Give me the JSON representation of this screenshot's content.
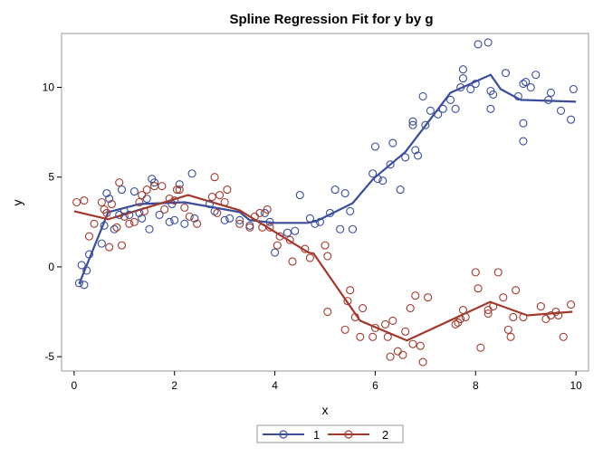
{
  "chart_data": {
    "type": "scatter",
    "title": "Spline Regression Fit for y by g",
    "xlabel": "x",
    "ylabel": "y",
    "xlim": [
      -0.25,
      10.25
    ],
    "ylim": [
      -5.8,
      13.0
    ],
    "xticks": [
      "0",
      "2",
      "4",
      "6",
      "8",
      "10"
    ],
    "yticks": [
      "-5",
      "0",
      "5",
      "10"
    ],
    "grid": false,
    "legend_placement": "bottom",
    "series": [
      {
        "name": "1",
        "color": "#3A4D9A",
        "points": [
          [
            0.1,
            -0.9
          ],
          [
            0.2,
            -1.0
          ],
          [
            0.15,
            0.1
          ],
          [
            0.25,
            -0.2
          ],
          [
            0.3,
            0.7
          ],
          [
            0.55,
            1.3
          ],
          [
            0.6,
            2.3
          ],
          [
            0.65,
            4.1
          ],
          [
            0.7,
            3.8
          ],
          [
            0.8,
            2.1
          ],
          [
            0.9,
            2.9
          ],
          [
            0.95,
            4.3
          ],
          [
            1.0,
            3.1
          ],
          [
            1.1,
            2.9
          ],
          [
            1.2,
            4.2
          ],
          [
            1.3,
            3.0
          ],
          [
            1.35,
            2.7
          ],
          [
            1.45,
            3.8
          ],
          [
            1.5,
            2.1
          ],
          [
            1.55,
            4.9
          ],
          [
            1.6,
            4.7
          ],
          [
            1.7,
            2.9
          ],
          [
            1.9,
            2.5
          ],
          [
            1.95,
            3.5
          ],
          [
            2.0,
            2.6
          ],
          [
            2.1,
            4.6
          ],
          [
            2.2,
            2.4
          ],
          [
            2.35,
            5.2
          ],
          [
            2.4,
            2.7
          ],
          [
            2.7,
            3.5
          ],
          [
            2.8,
            3.1
          ],
          [
            3.0,
            2.6
          ],
          [
            3.1,
            2.7
          ],
          [
            3.3,
            2.6
          ],
          [
            3.5,
            2.3
          ],
          [
            3.8,
            3.0
          ],
          [
            3.9,
            2.5
          ],
          [
            4.0,
            0.8
          ],
          [
            4.25,
            1.9
          ],
          [
            4.4,
            2.0
          ],
          [
            4.5,
            4.0
          ],
          [
            4.7,
            2.7
          ],
          [
            4.8,
            2.4
          ],
          [
            4.9,
            2.5
          ],
          [
            5.1,
            3.0
          ],
          [
            5.2,
            4.3
          ],
          [
            5.3,
            2.1
          ],
          [
            5.4,
            4.1
          ],
          [
            5.55,
            2.1
          ],
          [
            5.5,
            3.1
          ],
          [
            5.95,
            5.2
          ],
          [
            6.0,
            6.7
          ],
          [
            6.05,
            4.9
          ],
          [
            6.15,
            4.8
          ],
          [
            6.3,
            5.7
          ],
          [
            6.35,
            6.9
          ],
          [
            6.5,
            4.3
          ],
          [
            6.6,
            6.1
          ],
          [
            6.75,
            8.1
          ],
          [
            6.75,
            7.9
          ],
          [
            6.8,
            6.5
          ],
          [
            6.85,
            6.2
          ],
          [
            6.95,
            9.5
          ],
          [
            7.0,
            7.9
          ],
          [
            7.1,
            8.7
          ],
          [
            7.25,
            8.5
          ],
          [
            7.35,
            8.8
          ],
          [
            7.5,
            9.3
          ],
          [
            7.6,
            8.8
          ],
          [
            7.7,
            10.0
          ],
          [
            7.75,
            10.5
          ],
          [
            7.75,
            11.0
          ],
          [
            7.9,
            9.9
          ],
          [
            8.0,
            10.2
          ],
          [
            8.05,
            12.4
          ],
          [
            8.25,
            12.5
          ],
          [
            8.3,
            9.8
          ],
          [
            8.35,
            9.6
          ],
          [
            8.3,
            8.8
          ],
          [
            8.6,
            10.8
          ],
          [
            8.85,
            9.5
          ],
          [
            8.95,
            10.2
          ],
          [
            9.0,
            10.3
          ],
          [
            9.1,
            10.0
          ],
          [
            8.95,
            8.0
          ],
          [
            8.95,
            7.0
          ],
          [
            9.2,
            10.7
          ],
          [
            9.45,
            9.3
          ],
          [
            9.5,
            9.7
          ],
          [
            9.7,
            8.7
          ],
          [
            9.9,
            8.2
          ],
          [
            9.95,
            9.9
          ]
        ],
        "fit": [
          [
            0.1,
            -0.95
          ],
          [
            0.68,
            3.05
          ],
          [
            1.3,
            3.5
          ],
          [
            2.2,
            3.6
          ],
          [
            3.3,
            3.05
          ],
          [
            3.5,
            2.6
          ],
          [
            4.0,
            2.45
          ],
          [
            4.65,
            2.45
          ],
          [
            4.83,
            2.55
          ],
          [
            5.55,
            3.55
          ],
          [
            5.96,
            4.9
          ],
          [
            6.6,
            6.4
          ],
          [
            7.5,
            9.7
          ],
          [
            8.3,
            10.7
          ],
          [
            8.5,
            9.9
          ],
          [
            8.9,
            9.3
          ],
          [
            10.0,
            9.2
          ]
        ]
      },
      {
        "name": "2",
        "color": "#A23A2E",
        "points": [
          [
            0.05,
            3.6
          ],
          [
            0.2,
            3.7
          ],
          [
            0.3,
            1.7
          ],
          [
            0.4,
            2.4
          ],
          [
            0.55,
            3.6
          ],
          [
            0.6,
            3.2
          ],
          [
            0.65,
            3.0
          ],
          [
            0.7,
            1.1
          ],
          [
            0.75,
            3.5
          ],
          [
            0.85,
            2.2
          ],
          [
            0.9,
            4.7
          ],
          [
            0.95,
            1.2
          ],
          [
            1.0,
            2.8
          ],
          [
            1.1,
            2.4
          ],
          [
            1.2,
            2.5
          ],
          [
            1.3,
            3.6
          ],
          [
            1.35,
            4.0
          ],
          [
            1.4,
            3.1
          ],
          [
            1.45,
            4.3
          ],
          [
            1.6,
            4.5
          ],
          [
            1.75,
            4.5
          ],
          [
            1.8,
            3.2
          ],
          [
            1.9,
            3.8
          ],
          [
            2.0,
            3.7
          ],
          [
            2.05,
            4.3
          ],
          [
            2.1,
            4.3
          ],
          [
            2.2,
            3.3
          ],
          [
            2.3,
            2.8
          ],
          [
            2.45,
            2.4
          ],
          [
            2.75,
            3.9
          ],
          [
            2.8,
            5.0
          ],
          [
            2.85,
            3.0
          ],
          [
            2.9,
            4.0
          ],
          [
            3.0,
            3.6
          ],
          [
            3.05,
            4.3
          ],
          [
            3.3,
            2.4
          ],
          [
            3.5,
            2.2
          ],
          [
            3.6,
            2.8
          ],
          [
            3.7,
            3.0
          ],
          [
            3.75,
            2.2
          ],
          [
            3.85,
            3.2
          ],
          [
            3.9,
            2.2
          ],
          [
            4.05,
            1.2
          ],
          [
            4.1,
            1.7
          ],
          [
            4.3,
            1.5
          ],
          [
            4.35,
            0.3
          ],
          [
            4.6,
            1.0
          ],
          [
            4.7,
            0.5
          ],
          [
            5.0,
            1.2
          ],
          [
            5.05,
            0.6
          ],
          [
            5.05,
            -2.5
          ],
          [
            5.4,
            -3.5
          ],
          [
            5.5,
            -1.3
          ],
          [
            5.45,
            -1.9
          ],
          [
            5.6,
            -2.8
          ],
          [
            5.7,
            -3.9
          ],
          [
            5.75,
            -2.3
          ],
          [
            5.95,
            -3.9
          ],
          [
            6.0,
            -3.4
          ],
          [
            6.2,
            -3.2
          ],
          [
            6.25,
            -3.9
          ],
          [
            6.3,
            -5.0
          ],
          [
            6.35,
            -3.0
          ],
          [
            6.45,
            -4.7
          ],
          [
            6.55,
            -4.9
          ],
          [
            6.6,
            -3.6
          ],
          [
            6.7,
            -2.3
          ],
          [
            6.75,
            -4.3
          ],
          [
            6.8,
            -1.6
          ],
          [
            6.9,
            -4.4
          ],
          [
            6.95,
            -5.3
          ],
          [
            7.05,
            -1.7
          ],
          [
            7.6,
            -3.2
          ],
          [
            7.65,
            -3.1
          ],
          [
            7.7,
            -2.9
          ],
          [
            7.75,
            -2.4
          ],
          [
            7.8,
            -2.8
          ],
          [
            8.0,
            -0.3
          ],
          [
            8.05,
            -1.2
          ],
          [
            8.1,
            -4.5
          ],
          [
            8.25,
            -2.4
          ],
          [
            8.25,
            -2.6
          ],
          [
            8.35,
            -2.2
          ],
          [
            8.45,
            -0.3
          ],
          [
            8.55,
            -1.7
          ],
          [
            8.65,
            -3.5
          ],
          [
            8.7,
            -3.9
          ],
          [
            8.75,
            -2.8
          ],
          [
            8.8,
            -1.3
          ],
          [
            8.95,
            -2.8
          ],
          [
            9.3,
            -2.2
          ],
          [
            9.4,
            -2.9
          ],
          [
            9.5,
            -2.7
          ],
          [
            9.6,
            -2.5
          ],
          [
            9.65,
            -2.7
          ],
          [
            9.75,
            -3.9
          ],
          [
            9.9,
            -2.1
          ]
        ],
        "fit": [
          [
            0.0,
            3.1
          ],
          [
            0.68,
            2.65
          ],
          [
            2.27,
            4.0
          ],
          [
            3.3,
            3.15
          ],
          [
            4.67,
            0.8
          ],
          [
            4.77,
            0.75
          ],
          [
            5.7,
            -3.0
          ],
          [
            6.63,
            -4.1
          ],
          [
            8.29,
            -1.95
          ],
          [
            9.03,
            -2.7
          ],
          [
            9.93,
            -2.5
          ]
        ]
      }
    ]
  }
}
